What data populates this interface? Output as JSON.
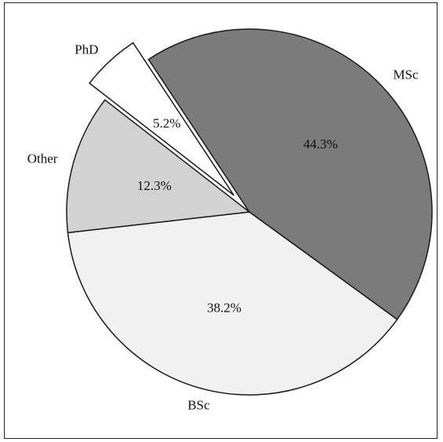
{
  "chart_data": {
    "type": "pie",
    "title": "",
    "slices": [
      {
        "label": "MSc",
        "value": 44.3,
        "value_label": "44.3%",
        "color": "#7b7b7b",
        "exploded": false
      },
      {
        "label": "BSc",
        "value": 38.2,
        "value_label": "38.2%",
        "color": "#f1f1f1",
        "exploded": false
      },
      {
        "label": "Other",
        "value": 12.3,
        "value_label": "12.3%",
        "color": "#d2d2d2",
        "exploded": false
      },
      {
        "label": "PhD",
        "value": 5.2,
        "value_label": "5.2%",
        "color": "#ffffff",
        "exploded": true
      }
    ]
  }
}
